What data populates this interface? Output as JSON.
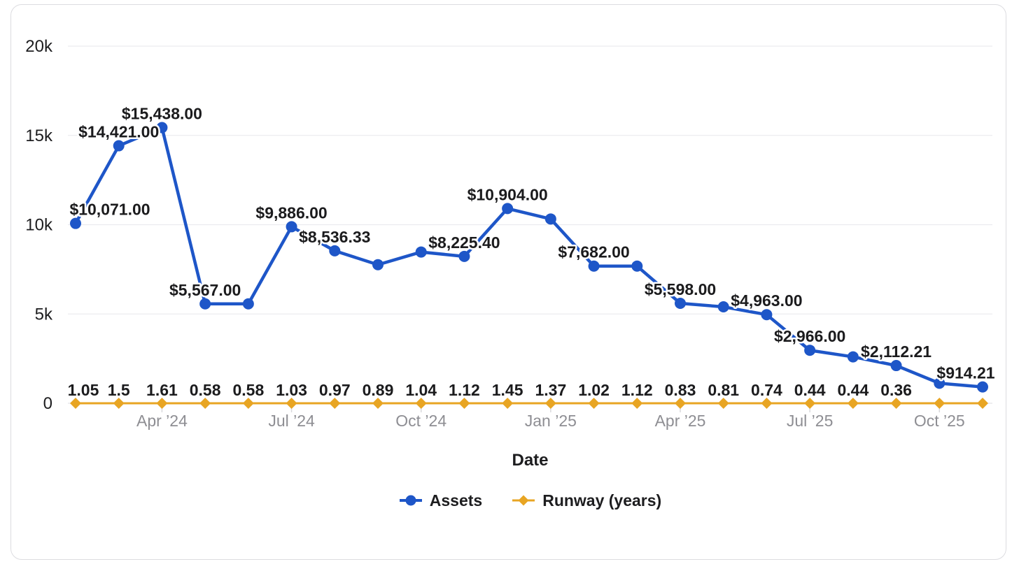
{
  "chart_data": {
    "type": "line",
    "title": "",
    "xlabel": "Date",
    "ylabel": "",
    "ylim": [
      0,
      20000
    ],
    "grid": "horizontal",
    "legend_position": "bottom",
    "y_ticks": [
      {
        "value": 0,
        "label": "0"
      },
      {
        "value": 5000,
        "label": "5k"
      },
      {
        "value": 10000,
        "label": "10k"
      },
      {
        "value": 15000,
        "label": "15k"
      },
      {
        "value": 20000,
        "label": "20k"
      }
    ],
    "categories": [
      "Feb ’24",
      "Mar ’24",
      "Apr ’24",
      "May ’24",
      "Jun ’24",
      "Jul ’24",
      "Aug ’24",
      "Sep ’24",
      "Oct ’24",
      "Nov ’24",
      "Dec ’24",
      "Jan ’25",
      "Feb ’25",
      "Mar ’25",
      "Apr ’25",
      "May ’25",
      "Jun ’25",
      "Jul ’25",
      "Aug ’25",
      "Sep ’25",
      "Oct ’25",
      "Nov ’25"
    ],
    "x_ticks": [
      {
        "index": 2,
        "label": "Apr ’24"
      },
      {
        "index": 5,
        "label": "Jul ’24"
      },
      {
        "index": 8,
        "label": "Oct ’24"
      },
      {
        "index": 11,
        "label": "Jan ’25"
      },
      {
        "index": 14,
        "label": "Apr ’25"
      },
      {
        "index": 17,
        "label": "Jul ’25"
      },
      {
        "index": 20,
        "label": "Oct ’25"
      }
    ],
    "series": [
      {
        "name": "Assets",
        "color": "#1e56c8",
        "marker": "circle",
        "values": [
          10071,
          14421,
          15438,
          5567,
          5567,
          9886,
          8536.33,
          7760,
          8470,
          8225.4,
          10904,
          10320,
          7682,
          7680,
          5598,
          5400,
          4963,
          2966,
          2600,
          2112.21,
          1120,
          914.21
        ],
        "labels": [
          "$10,071.00",
          "$14,421.00",
          "$15,438.00",
          "$5,567.00",
          null,
          "$9,886.00",
          "$8,536.33",
          null,
          null,
          "$8,225.40",
          "$10,904.00",
          null,
          "$7,682.00",
          null,
          "$5,598.00",
          null,
          "$4,963.00",
          "$2,966.00",
          null,
          "$2,112.21",
          null,
          "$914.21"
        ]
      },
      {
        "name": "Runway (years)",
        "color": "#e8a523",
        "marker": "diamond",
        "values": [
          1.05,
          1.5,
          1.61,
          0.58,
          0.58,
          1.03,
          0.97,
          0.89,
          1.04,
          1.12,
          1.45,
          1.37,
          1.02,
          1.12,
          0.83,
          0.81,
          0.74,
          0.44,
          0.44,
          0.36,
          0.4,
          0.35
        ],
        "labels": [
          "1.05",
          "1.5",
          "1.61",
          "0.58",
          "0.58",
          "1.03",
          "0.97",
          "0.89",
          "1.04",
          "1.12",
          "1.45",
          "1.37",
          "1.02",
          "1.12",
          "0.83",
          "0.81",
          "0.74",
          "0.44",
          "0.44",
          "0.36",
          null,
          null
        ]
      }
    ]
  }
}
